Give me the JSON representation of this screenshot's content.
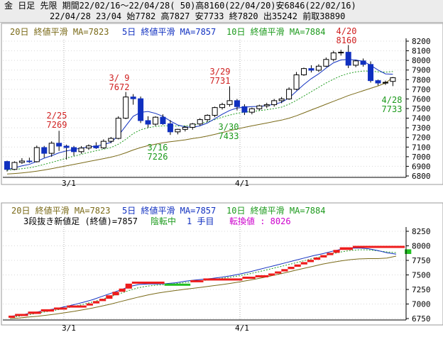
{
  "header": {
    "line1": "金 日足 先限 期間22/02/16～22/04/28( 50)高8160(22/04/20)安6846(22/02/16)",
    "line2": "22/04/28 23/04 始7782 高7827 安7733 終7820 出35242 前取38890"
  },
  "legend_top": [
    {
      "text": "20日 終値平滑 MA=7823",
      "color": "#7a6a18"
    },
    {
      "text": "5日 終値平滑 MA=7857",
      "color": "#1030c0"
    },
    {
      "text": "10日 終値平滑 MA=7884",
      "color": "#1c9a1c"
    }
  ],
  "legend_bottom": [
    {
      "text": "20日 終値平滑 MA=7823",
      "color": "#7a6a18"
    },
    {
      "text": "5日 終値平滑 MA=7857",
      "color": "#1030c0"
    },
    {
      "text": "10日 終値平滑 MA=7884",
      "color": "#1c9a1c"
    }
  ],
  "kagi_status": {
    "label": "3段抜き新値足 (終値)=7857",
    "state": "陰転中",
    "count": "1 手目",
    "reversal": "転換値 : 8026"
  },
  "colors": {
    "up": "#ffffff",
    "down": "#1030c0",
    "bull_block": "#ee1c1c",
    "bear_block": "#22c022",
    "annot_high": "#d02020",
    "annot_low": "#1c9a1c",
    "axis": "#000000",
    "grid": "#aaaaaa"
  },
  "chart_data": [
    {
      "type": "candlestick",
      "x_labels": [
        "3/1",
        "4/1"
      ],
      "ylim": [
        6800,
        8200
      ],
      "yticks": [
        6800,
        6900,
        7000,
        7100,
        7200,
        7300,
        7400,
        7500,
        7600,
        7700,
        7800,
        7900,
        8000,
        8100,
        8200
      ],
      "grid": true,
      "candles": [
        [
          6950,
          6958,
          6846,
          6868
        ],
        [
          6868,
          6952,
          6860,
          6940
        ],
        [
          6940,
          6985,
          6925,
          6955
        ],
        [
          6955,
          6990,
          6935,
          6948
        ],
        [
          6948,
          7115,
          6940,
          7095
        ],
        [
          7095,
          7112,
          6990,
          7035
        ],
        [
          7035,
          7160,
          7000,
          7140
        ],
        [
          7140,
          7269,
          7060,
          7110
        ],
        [
          7110,
          7125,
          6970,
          7095
        ],
        [
          7095,
          7112,
          7010,
          7052
        ],
        [
          7052,
          7110,
          7030,
          7090
        ],
        [
          7090,
          7128,
          7070,
          7112
        ],
        [
          7112,
          7150,
          7080,
          7092
        ],
        [
          7092,
          7180,
          7080,
          7160
        ],
        [
          7160,
          7205,
          7140,
          7190
        ],
        [
          7190,
          7420,
          7180,
          7400
        ],
        [
          7400,
          7672,
          7390,
          7620
        ],
        [
          7620,
          7650,
          7540,
          7602
        ],
        [
          7602,
          7625,
          7350,
          7375
        ],
        [
          7375,
          7420,
          7300,
          7338
        ],
        [
          7338,
          7420,
          7320,
          7410
        ],
        [
          7410,
          7440,
          7330,
          7342
        ],
        [
          7342,
          7380,
          7226,
          7258
        ],
        [
          7258,
          7290,
          7232,
          7284
        ],
        [
          7284,
          7320,
          7262,
          7305
        ],
        [
          7305,
          7350,
          7280,
          7340
        ],
        [
          7340,
          7400,
          7320,
          7385
        ],
        [
          7385,
          7440,
          7360,
          7430
        ],
        [
          7430,
          7520,
          7410,
          7510
        ],
        [
          7510,
          7560,
          7490,
          7542
        ],
        [
          7542,
          7731,
          7520,
          7582
        ],
        [
          7582,
          7600,
          7480,
          7520
        ],
        [
          7520,
          7545,
          7433,
          7462
        ],
        [
          7462,
          7510,
          7440,
          7498
        ],
        [
          7498,
          7540,
          7480,
          7528
        ],
        [
          7528,
          7560,
          7505,
          7540
        ],
        [
          7540,
          7600,
          7520,
          7582
        ],
        [
          7582,
          7620,
          7555,
          7600
        ],
        [
          7600,
          7720,
          7590,
          7700
        ],
        [
          7700,
          7880,
          7690,
          7850
        ],
        [
          7850,
          7925,
          7840,
          7915
        ],
        [
          7915,
          7950,
          7875,
          7898
        ],
        [
          7898,
          7960,
          7880,
          7940
        ],
        [
          7940,
          8030,
          7930,
          8010
        ],
        [
          8010,
          8100,
          7990,
          8078
        ],
        [
          8078,
          8110,
          8050,
          8085
        ],
        [
          8085,
          8160,
          7920,
          7950
        ],
        [
          7950,
          8005,
          7930,
          7995
        ],
        [
          7995,
          8020,
          7935,
          7958
        ],
        [
          7958,
          7990,
          7770,
          7790
        ],
        [
          7790,
          7800,
          7740,
          7765
        ],
        [
          7765,
          7790,
          7745,
          7772
        ],
        [
          7782,
          7827,
          7733,
          7820
        ]
      ],
      "ma": [
        {
          "name": "5日",
          "color": "#1030c0",
          "values": [
            6868,
            6885,
            6905,
            6920,
            6950,
            6985,
            7010,
            7040,
            7060,
            7075,
            7090,
            7100,
            7110,
            7125,
            7150,
            7220,
            7320,
            7420,
            7460,
            7470,
            7450,
            7420,
            7370,
            7330,
            7310,
            7305,
            7320,
            7350,
            7395,
            7440,
            7480,
            7505,
            7515,
            7520,
            7522,
            7530,
            7545,
            7565,
            7610,
            7680,
            7750,
            7810,
            7860,
            7920,
            7975,
            8005,
            8010,
            8005,
            7990,
            7950,
            7900,
            7860,
            7857
          ]
        },
        {
          "name": "10日",
          "color": "#1c9a1c",
          "values": [
            6860,
            6868,
            6875,
            6885,
            6900,
            6920,
            6940,
            6962,
            6985,
            7005,
            7025,
            7045,
            7062,
            7078,
            7095,
            7130,
            7180,
            7240,
            7280,
            7300,
            7315,
            7320,
            7320,
            7318,
            7320,
            7328,
            7342,
            7362,
            7385,
            7410,
            7432,
            7450,
            7462,
            7470,
            7478,
            7488,
            7500,
            7515,
            7545,
            7585,
            7630,
            7675,
            7720,
            7765,
            7805,
            7840,
            7865,
            7880,
            7890,
            7888,
            7882,
            7878,
            7884
          ]
        },
        {
          "name": "20日",
          "color": "#7a6a18",
          "values": [
            6820,
            6825,
            6832,
            6840,
            6850,
            6862,
            6875,
            6890,
            6905,
            6920,
            6935,
            6950,
            6965,
            6980,
            6995,
            7015,
            7040,
            7070,
            7095,
            7115,
            7130,
            7145,
            7155,
            7165,
            7175,
            7188,
            7200,
            7215,
            7232,
            7250,
            7270,
            7288,
            7305,
            7320,
            7335,
            7350,
            7365,
            7380,
            7400,
            7425,
            7455,
            7485,
            7515,
            7545,
            7575,
            7605,
            7635,
            7660,
            7685,
            7710,
            7735,
            7765,
            7823
          ]
        }
      ],
      "annotations": [
        {
          "date": "2/25",
          "value": 7269,
          "kind": "high"
        },
        {
          "date": "3/ 9",
          "value": 7672,
          "kind": "high"
        },
        {
          "date": "3/16",
          "value": 7226,
          "kind": "low"
        },
        {
          "date": "3/29",
          "value": 7731,
          "kind": "high"
        },
        {
          "date": "3/30",
          "value": 7433,
          "kind": "low"
        },
        {
          "date": "4/20",
          "value": 8160,
          "kind": "high"
        },
        {
          "date": "4/28",
          "value": 7733,
          "kind": "low"
        }
      ]
    },
    {
      "type": "three-line-break",
      "x_labels": [
        "3/1",
        "4/1"
      ],
      "ylim": [
        6750,
        8250
      ],
      "yticks": [
        6750,
        7000,
        7250,
        7500,
        7750,
        8000,
        8250
      ],
      "grid": true,
      "blocks": [
        {
          "dir": "up",
          "low": 6780,
          "high": 6800,
          "span": [
            0,
            1
          ]
        },
        {
          "dir": "up",
          "low": 6800,
          "high": 6830,
          "span": [
            1,
            3
          ]
        },
        {
          "dir": "up",
          "low": 6830,
          "high": 6870,
          "span": [
            3,
            5
          ]
        },
        {
          "dir": "up",
          "low": 6870,
          "high": 6910,
          "span": [
            5,
            7
          ]
        },
        {
          "dir": "up",
          "low": 6910,
          "high": 6940,
          "span": [
            7,
            9
          ]
        },
        {
          "dir": "up",
          "low": 6940,
          "high": 6975,
          "span": [
            9,
            12
          ]
        },
        {
          "dir": "up",
          "low": 6975,
          "high": 7010,
          "span": [
            12,
            13
          ]
        },
        {
          "dir": "up",
          "low": 7010,
          "high": 7050,
          "span": [
            13,
            14
          ]
        },
        {
          "dir": "up",
          "low": 7050,
          "high": 7090,
          "span": [
            14,
            15
          ]
        },
        {
          "dir": "up",
          "low": 7090,
          "high": 7150,
          "span": [
            15,
            16
          ]
        },
        {
          "dir": "up",
          "low": 7150,
          "high": 7210,
          "span": [
            16,
            17
          ]
        },
        {
          "dir": "up",
          "low": 7210,
          "high": 7265,
          "span": [
            17,
            18
          ]
        },
        {
          "dir": "up",
          "low": 7265,
          "high": 7350,
          "span": [
            18,
            19
          ]
        },
        {
          "dir": "up",
          "low": 7350,
          "high": 7385,
          "span": [
            19,
            24
          ]
        },
        {
          "dir": "down",
          "low": 7330,
          "high": 7350,
          "span": [
            24,
            28
          ]
        },
        {
          "dir": "up",
          "low": 7385,
          "high": 7410,
          "span": [
            28,
            30
          ]
        },
        {
          "dir": "up",
          "low": 7410,
          "high": 7440,
          "span": [
            30,
            36
          ]
        },
        {
          "dir": "up",
          "low": 7440,
          "high": 7470,
          "span": [
            36,
            38
          ]
        },
        {
          "dir": "up",
          "low": 7470,
          "high": 7495,
          "span": [
            38,
            40
          ]
        },
        {
          "dir": "up",
          "low": 7495,
          "high": 7525,
          "span": [
            40,
            41
          ]
        },
        {
          "dir": "up",
          "low": 7525,
          "high": 7560,
          "span": [
            41,
            42
          ]
        },
        {
          "dir": "up",
          "low": 7560,
          "high": 7600,
          "span": [
            42,
            43
          ]
        },
        {
          "dir": "up",
          "low": 7600,
          "high": 7640,
          "span": [
            43,
            44
          ]
        },
        {
          "dir": "up",
          "low": 7640,
          "high": 7680,
          "span": [
            44,
            45
          ]
        },
        {
          "dir": "up",
          "low": 7680,
          "high": 7720,
          "span": [
            45,
            46
          ]
        },
        {
          "dir": "up",
          "low": 7720,
          "high": 7760,
          "span": [
            46,
            47
          ]
        },
        {
          "dir": "up",
          "low": 7760,
          "high": 7800,
          "span": [
            47,
            48
          ]
        },
        {
          "dir": "up",
          "low": 7800,
          "high": 7840,
          "span": [
            48,
            49
          ]
        },
        {
          "dir": "up",
          "low": 7840,
          "high": 7880,
          "span": [
            49,
            50
          ]
        },
        {
          "dir": "up",
          "low": 7880,
          "high": 7930,
          "span": [
            50,
            51
          ]
        },
        {
          "dir": "up",
          "low": 7930,
          "high": 7975,
          "span": [
            51,
            53
          ]
        },
        {
          "dir": "up",
          "low": 7975,
          "high": 8000,
          "span": [
            53,
            61
          ]
        },
        {
          "dir": "down",
          "low": 7860,
          "high": 7940,
          "span": [
            61,
            62
          ]
        }
      ],
      "ma": [
        {
          "name": "5日",
          "color": "#1030c0",
          "values": [
            6790,
            6805,
            6835,
            6865,
            6895,
            6920,
            6955,
            6990,
            7030,
            7075,
            7130,
            7185,
            7240,
            7300,
            7335,
            7345,
            7345,
            7350,
            7365,
            7390,
            7410,
            7425,
            7440,
            7460,
            7485,
            7515,
            7550,
            7590,
            7630,
            7670,
            7710,
            7750,
            7790,
            7830,
            7865,
            7905,
            7940,
            7960,
            7962,
            7950,
            7920,
            7880,
            7857
          ]
        },
        {
          "name": "10日",
          "color": "#1c9a1c",
          "values": [
            6775,
            6790,
            6815,
            6840,
            6870,
            6895,
            6925,
            6960,
            6995,
            7035,
            7080,
            7130,
            7180,
            7235,
            7280,
            7310,
            7325,
            7335,
            7350,
            7368,
            7385,
            7402,
            7420,
            7440,
            7462,
            7488,
            7518,
            7552,
            7590,
            7628,
            7666,
            7705,
            7745,
            7785,
            7822,
            7860,
            7895,
            7920,
            7932,
            7930,
            7915,
            7895,
            7884
          ]
        },
        {
          "name": "20日",
          "color": "#7a6a18",
          "values": [
            6750,
            6760,
            6775,
            6790,
            6808,
            6828,
            6850,
            6875,
            6902,
            6932,
            6965,
            7000,
            7040,
            7080,
            7120,
            7155,
            7185,
            7210,
            7232,
            7252,
            7272,
            7292,
            7312,
            7332,
            7355,
            7380,
            7408,
            7438,
            7470,
            7505,
            7540,
            7578,
            7615,
            7650,
            7685,
            7715,
            7742,
            7762,
            7775,
            7780,
            7780,
            7790,
            7823
          ]
        }
      ]
    }
  ]
}
